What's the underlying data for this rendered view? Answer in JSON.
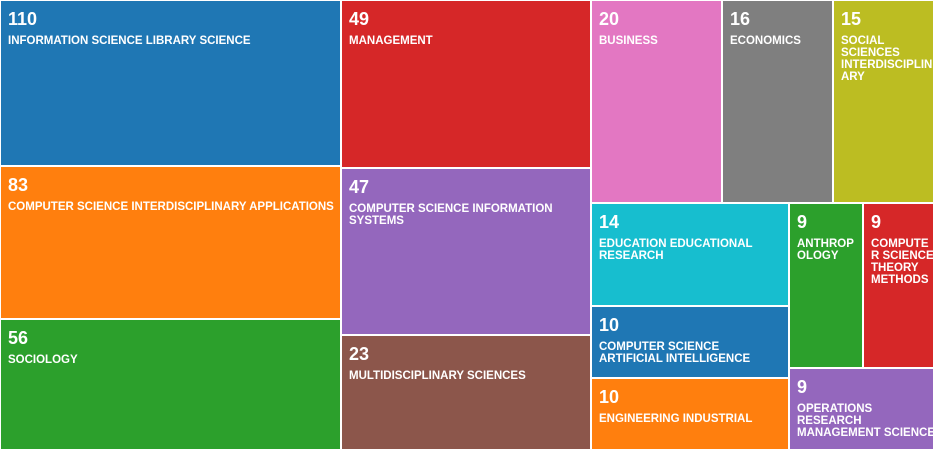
{
  "chart_data": {
    "type": "treemap",
    "title": "",
    "items": [
      {
        "label": "INFORMATION SCIENCE LIBRARY SCIENCE",
        "value": 110,
        "color": "#1f77b4"
      },
      {
        "label": "COMPUTER SCIENCE INTERDISCIPLINARY APPLICATIONS",
        "value": 83,
        "color": "#ff7f0e"
      },
      {
        "label": "SOCIOLOGY",
        "value": 56,
        "color": "#2ca02c"
      },
      {
        "label": "MANAGEMENT",
        "value": 49,
        "color": "#d62728"
      },
      {
        "label": "COMPUTER SCIENCE INFORMATION SYSTEMS",
        "value": 47,
        "color": "#9467bd"
      },
      {
        "label": "MULTIDISCIPLINARY SCIENCES",
        "value": 23,
        "color": "#8c564b"
      },
      {
        "label": "BUSINESS",
        "value": 20,
        "color": "#e377c2"
      },
      {
        "label": "ECONOMICS",
        "value": 16,
        "color": "#7f7f7f"
      },
      {
        "label": "SOCIAL SCIENCES INTERDISCIPLINARY",
        "value": 15,
        "color": "#bcbd22"
      },
      {
        "label": "EDUCATION EDUCATIONAL RESEARCH",
        "value": 14,
        "color": "#17becf"
      },
      {
        "label": "COMPUTER SCIENCE ARTIFICIAL INTELLIGENCE",
        "value": 10,
        "color": "#1f77b4"
      },
      {
        "label": "ENGINEERING INDUSTRIAL",
        "value": 10,
        "color": "#ff7f0e"
      },
      {
        "label": "ANTHROPOLOGY",
        "value": 9,
        "color": "#2ca02c"
      },
      {
        "label": "COMPUTER SCIENCE THEORY METHODS",
        "value": 9,
        "color": "#d62728"
      },
      {
        "label": "OPERATIONS RESEARCH MANAGEMENT SCIENCE",
        "value": 9,
        "color": "#9467bd"
      }
    ]
  }
}
